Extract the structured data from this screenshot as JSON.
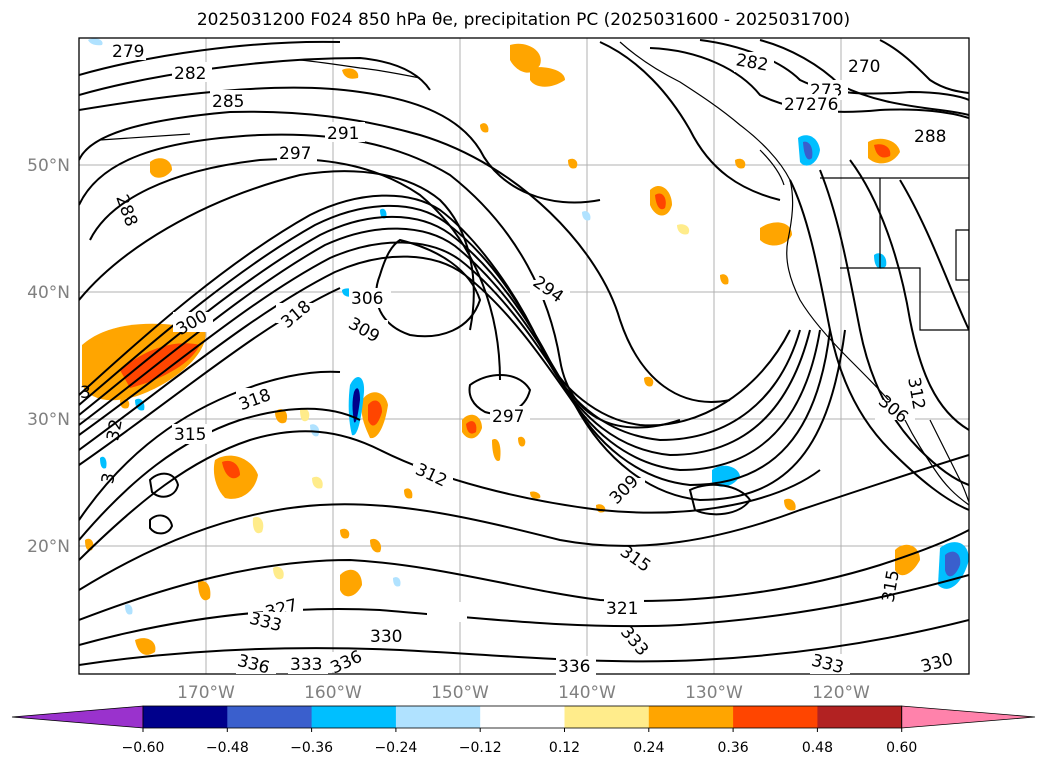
{
  "title": "2025031200 F024 850 hPa θe, precipitation PC (2025031600 - 2025031700)",
  "map": {
    "lon_labels": [
      "170°W",
      "160°W",
      "150°W",
      "140°W",
      "130°W",
      "120°W"
    ],
    "lat_labels": [
      "50°N",
      "40°N",
      "30°N",
      "20°N"
    ],
    "contour_labels": [
      "279",
      "282",
      "285",
      "291",
      "297",
      "288",
      "300",
      "306",
      "309",
      "318",
      "324",
      "318",
      "315",
      "312",
      "297",
      "294",
      "309",
      "315",
      "321",
      "324",
      "327",
      "333",
      "330",
      "336",
      "333",
      "336",
      "336",
      "333",
      "333",
      "330",
      "270",
      "273",
      "276",
      "276",
      "282",
      "288",
      "306",
      "312",
      "315",
      "32",
      "3",
      "3"
    ]
  },
  "colorbar": {
    "ticks": [
      "−0.60",
      "−0.48",
      "−0.36",
      "−0.24",
      "−0.12",
      "0.12",
      "0.24",
      "0.36",
      "0.48",
      "0.60"
    ],
    "colors": [
      "#9a32cd",
      "#00008b",
      "#3a5fcd",
      "#00bfff",
      "#b0e2ff",
      "#ffffff",
      "#ffec8b",
      "#ffa500",
      "#ff4500",
      "#b22222",
      "#ff82ab"
    ]
  }
}
